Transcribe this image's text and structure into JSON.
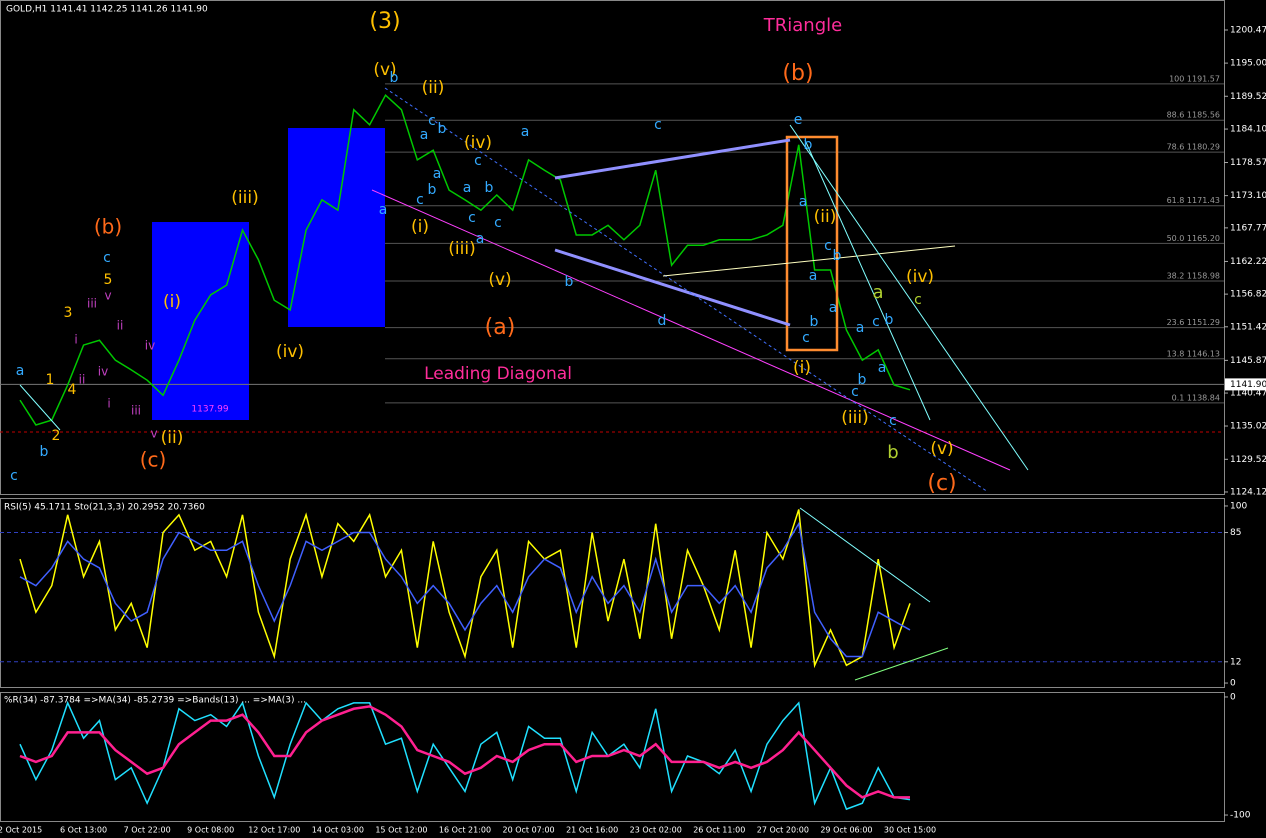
{
  "chart_data": [
    {
      "type": "line",
      "title": "GOLD,H1 1141.41 1142.25 1141.26 1141.90",
      "categories": [
        "2 Oct 2015",
        null,
        null,
        null,
        "6 Oct 13:00",
        null,
        null,
        null,
        "7 Oct 22:00",
        null,
        null,
        null,
        "9 Oct 08:00",
        null,
        null,
        null,
        "12 Oct 17:00",
        null,
        null,
        null,
        "14 Oct 03:00",
        null,
        null,
        null,
        "15 Oct 12:00",
        null,
        null,
        null,
        "16 Oct 21:00",
        null,
        null,
        null,
        "20 Oct 07:00",
        null,
        null,
        null,
        "21 Oct 16:00",
        null,
        null,
        null,
        "23 Oct 02:00",
        null,
        null,
        null,
        "26 Oct 11:00",
        null,
        null,
        null,
        "27 Oct 20:00",
        null,
        null,
        null,
        "29 Oct 06:00",
        null,
        null,
        null,
        "30 Oct 15:00"
      ],
      "series": [
        {
          "name": "GOLD,H1",
          "color": "#00c800",
          "values": [
            1139.3,
            1135.2,
            1136.0,
            1141.8,
            1148.4,
            1149.2,
            1145.9,
            1144.3,
            1142.6,
            1140.1,
            1145.9,
            1152.5,
            1156.7,
            1158.3,
            1167.4,
            1162.5,
            1155.8,
            1154.2,
            1167.4,
            1172.4,
            1170.7,
            1187.3,
            1184.8,
            1189.7,
            1187.3,
            1179.0,
            1180.6,
            1174.0,
            1172.4,
            1170.7,
            1173.2,
            1170.7,
            1179.0,
            1177.3,
            1175.7,
            1166.6,
            1166.6,
            1168.2,
            1165.8,
            1168.2,
            1177.3,
            1161.6,
            1164.9,
            1164.9,
            1165.8,
            1165.8,
            1165.8,
            1166.6,
            1168.2,
            1181.5,
            1160.8,
            1160.8,
            1150.9,
            1145.9,
            1147.6,
            1141.8,
            1141.0
          ]
        }
      ],
      "ylim": [
        1123.62,
        1205.43
      ],
      "yticks": [
        1200.47,
        {
          "value": 1195,
          "label": "1195.00"
        },
        1189.52,
        {
          "value": 1184.1,
          "label": "1184.10"
        },
        1178.57,
        {
          "value": 1173.1,
          "label": "1173.10"
        },
        1167.77,
        1162.22,
        1156.82,
        1151.42,
        1145.87,
        1140.47,
        1135.02,
        1129.52,
        1124.12
      ],
      "fib_levels": [
        {
          "value": 1191.57,
          "label": "100 1191.57"
        },
        {
          "value": 1185.56,
          "label": "88.6 1185.56"
        },
        {
          "value": 1180.29,
          "label": "78.6 1180.29"
        },
        {
          "value": 1171.43,
          "label": "61.8 1171.43"
        },
        {
          "value": 1165.2,
          "label": "50.0 1165.20"
        },
        {
          "value": 1158.98,
          "label": "38.2 1158.98"
        },
        {
          "value": 1151.29,
          "label": "23.6 1151.29"
        },
        {
          "value": 1146.13,
          "label": "13.8 1146.13"
        },
        {
          "value": 1138.84,
          "label": "0.1 1138.84"
        }
      ],
      "last_price": {
        "value": 1141.9,
        "label": "1141.90"
      },
      "annotations": [
        "(3)",
        "TRiangle",
        "(b)",
        "(v)",
        "(ii)",
        "(iv)",
        "(i)",
        "(iii)",
        "(v)",
        "(a)",
        "Leading Diagonal",
        "(b)",
        "(iii)",
        "(i)",
        "(iv)",
        "(ii)",
        "(c)",
        "1137.99",
        "(ii)",
        "(i)",
        "(iii)",
        "(iv)",
        "(v)",
        "(c)",
        "a",
        "b",
        "c",
        "c",
        "b",
        "a",
        "c",
        "b",
        "a",
        "a",
        "c",
        "b",
        "a",
        "c",
        "b",
        "c",
        "a",
        "c",
        "a",
        "c",
        "b",
        "d",
        "e",
        "b",
        "a",
        "c",
        "b",
        "a",
        "a",
        "b",
        "c",
        "a",
        "c",
        "b",
        "a",
        "b",
        "c",
        "c",
        "a",
        "b",
        "c",
        "5",
        "3",
        "1",
        "4",
        "2",
        "v",
        "iii",
        "ii",
        "i",
        "iv",
        "iv",
        "ii",
        "i",
        "iii",
        "v"
      ]
    },
    {
      "type": "line",
      "title": "RSI(5) 45.1711  Sto(21,3,3) 20.2952 20.7360",
      "series": [
        {
          "name": "RSI(5)",
          "color": "#ffff00",
          "values": [
            70,
            40,
            55,
            95,
            60,
            80,
            30,
            45,
            20,
            85,
            95,
            75,
            80,
            60,
            95,
            40,
            15,
            70,
            95,
            60,
            90,
            80,
            95,
            60,
            75,
            20,
            80,
            40,
            15,
            60,
            75,
            20,
            80,
            70,
            75,
            20,
            85,
            35,
            70,
            25,
            90,
            25,
            75,
            55,
            30,
            75,
            20,
            85,
            70,
            98,
            10,
            30,
            10,
            15,
            70,
            20,
            45
          ]
        },
        {
          "name": "Sto(21,3,3)",
          "color": "#4060ff",
          "values": [
            60,
            55,
            65,
            80,
            70,
            65,
            45,
            35,
            40,
            70,
            85,
            80,
            75,
            75,
            80,
            55,
            35,
            55,
            80,
            75,
            80,
            85,
            85,
            70,
            60,
            45,
            55,
            45,
            30,
            45,
            55,
            40,
            60,
            70,
            65,
            40,
            60,
            45,
            55,
            40,
            70,
            40,
            55,
            55,
            45,
            55,
            40,
            65,
            75,
            90,
            40,
            25,
            15,
            15,
            40,
            35,
            30
          ]
        }
      ],
      "ylim": [
        -2.8,
        104.5
      ],
      "yticks": [
        0,
        12,
        85,
        100
      ]
    },
    {
      "type": "line",
      "title": "%R(34) -87.3784  =>MA(34) -85.2739  =>Bands(13) ...  =>MA(3) ...",
      "series": [
        {
          "name": "%R(34)",
          "color": "#20e0ff",
          "values": [
            -40,
            -70,
            -45,
            -5,
            -35,
            -20,
            -70,
            -60,
            -90,
            -60,
            -10,
            -20,
            -15,
            -25,
            -5,
            -50,
            -85,
            -40,
            -5,
            -20,
            -10,
            -5,
            -5,
            -40,
            -35,
            -80,
            -40,
            -60,
            -80,
            -40,
            -30,
            -70,
            -25,
            -35,
            -35,
            -80,
            -30,
            -50,
            -40,
            -60,
            -10,
            -80,
            -50,
            -55,
            -65,
            -45,
            -80,
            -40,
            -20,
            -5,
            -90,
            -60,
            -95,
            -90,
            -60,
            -85,
            -87
          ]
        },
        {
          "name": "MA(34)",
          "color": "#ff2090",
          "values": [
            -50,
            -55,
            -50,
            -30,
            -30,
            -30,
            -45,
            -55,
            -65,
            -60,
            -40,
            -30,
            -20,
            -20,
            -15,
            -30,
            -50,
            -50,
            -30,
            -20,
            -15,
            -10,
            -8,
            -15,
            -25,
            -45,
            -50,
            -55,
            -65,
            -60,
            -50,
            -55,
            -45,
            -40,
            -40,
            -55,
            -50,
            -50,
            -45,
            -50,
            -40,
            -55,
            -55,
            -55,
            -60,
            -55,
            -60,
            -55,
            -45,
            -30,
            -45,
            -60,
            -75,
            -85,
            -80,
            -85,
            -85
          ]
        }
      ],
      "ylim": [
        -105.9,
        4.2
      ],
      "yticks": [
        0,
        -100
      ]
    }
  ]
}
